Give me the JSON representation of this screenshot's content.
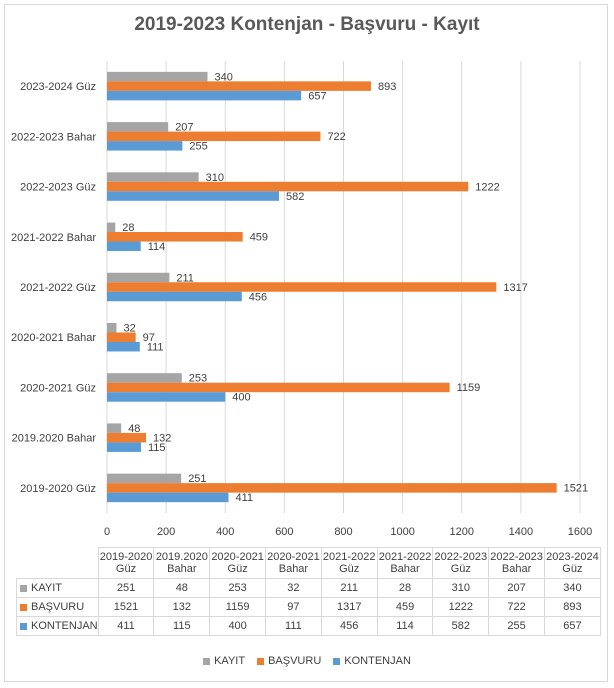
{
  "chart_data": {
    "type": "bar",
    "orientation": "horizontal",
    "title": "2019-2023 Kontenjan - Başvuru - Kayıt",
    "categories": [
      "2019-2020 Güz",
      "2019.2020 Bahar",
      "2020-2021 Güz",
      "2020-2021 Bahar",
      "2021-2022 Güz",
      "2021-2022 Bahar",
      "2022-2023 Güz",
      "2022-2023 Bahar",
      "2023-2024 Güz"
    ],
    "table_headers": [
      [
        "2019-2020",
        "Güz"
      ],
      [
        "2019.2020",
        "Bahar"
      ],
      [
        "2020-2021",
        "Güz"
      ],
      [
        "2020-2021",
        "Bahar"
      ],
      [
        "2021-2022",
        "Güz"
      ],
      [
        "2021-2022",
        "Bahar"
      ],
      [
        "2022-2023",
        "Güz"
      ],
      [
        "2022-2023",
        "Bahar"
      ],
      [
        "2023-2024",
        "Güz"
      ]
    ],
    "series": [
      {
        "name": "KAYIT",
        "color": "#a5a5a5",
        "values": [
          251,
          48,
          253,
          32,
          211,
          28,
          310,
          207,
          340
        ]
      },
      {
        "name": "BAŞVURU",
        "color": "#ed7d31",
        "values": [
          1521,
          132,
          1159,
          97,
          1317,
          459,
          1222,
          722,
          893
        ]
      },
      {
        "name": "KONTENJAN",
        "color": "#5b9bd5",
        "values": [
          411,
          115,
          400,
          111,
          456,
          114,
          582,
          255,
          657
        ]
      }
    ],
    "xlim": [
      0,
      1600
    ],
    "xticks": [
      0,
      200,
      400,
      600,
      800,
      1000,
      1200,
      1400,
      1600
    ],
    "grid": true,
    "legend": "bottom",
    "data_table": true
  }
}
